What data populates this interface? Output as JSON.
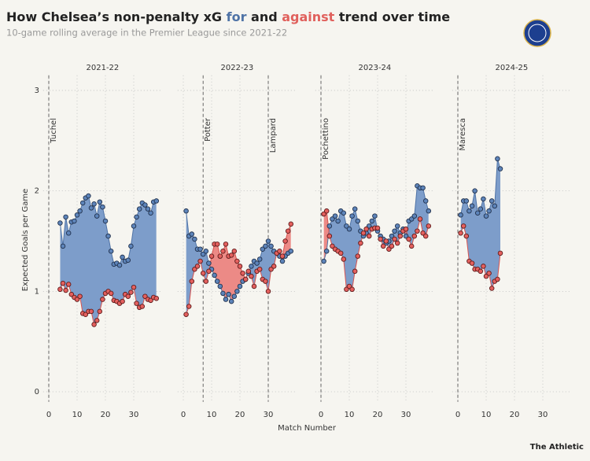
{
  "title": [
    "How Chelsea’s non-penalty xG ",
    "for",
    " and ",
    "against",
    " trend over time"
  ],
  "title_colors": [
    "#222222",
    "#4f73a6",
    "#222222",
    "#e0605c",
    "#222222"
  ],
  "subtitle": "10-game rolling average in the Premier League since 2021-22",
  "y_label": "Expected Goals per Game",
  "x_label": "Match Number",
  "source": "The Athletic",
  "chart_data": [
    {
      "type": "line",
      "title": "2021-22",
      "xlim": [
        -2,
        40
      ],
      "xticks": [
        0,
        10,
        20,
        30
      ],
      "ylim": [
        -0.1,
        3.15
      ],
      "yticks": [
        0,
        1,
        2,
        3
      ],
      "grid": true,
      "annotations": [
        {
          "label": "Tuchel",
          "x": 0
        }
      ],
      "x": [
        4,
        5,
        6,
        7,
        8,
        9,
        10,
        11,
        12,
        13,
        14,
        15,
        16,
        17,
        18,
        19,
        20,
        21,
        22,
        23,
        24,
        25,
        26,
        27,
        28,
        29,
        30,
        31,
        32,
        33,
        34,
        35,
        36,
        37,
        38
      ],
      "series": [
        {
          "color": "#5d84ba",
          "values": [
            1.68,
            1.45,
            1.74,
            1.58,
            1.69,
            1.7,
            1.76,
            1.8,
            1.88,
            1.93,
            1.95,
            1.83,
            1.87,
            1.75,
            1.89,
            1.84,
            1.7,
            1.55,
            1.4,
            1.27,
            1.28,
            1.26,
            1.34,
            1.3,
            1.31,
            1.45,
            1.65,
            1.74,
            1.82,
            1.88,
            1.86,
            1.82,
            1.78,
            1.89,
            1.9
          ]
        },
        {
          "color": "#e4605e",
          "values": [
            1.02,
            1.08,
            1.01,
            1.07,
            0.97,
            0.94,
            0.92,
            0.95,
            0.78,
            0.77,
            0.8,
            0.8,
            0.67,
            0.71,
            0.8,
            0.92,
            0.98,
            1.0,
            0.98,
            0.91,
            0.9,
            0.88,
            0.9,
            0.97,
            0.95,
            0.99,
            1.04,
            0.88,
            0.84,
            0.85,
            0.95,
            0.92,
            0.91,
            0.94,
            0.93
          ]
        }
      ]
    },
    {
      "type": "line",
      "title": "2022-23",
      "xlim": [
        -2,
        40
      ],
      "xticks": [
        0,
        10,
        20,
        30
      ],
      "ylim": [
        -0.1,
        3.15
      ],
      "yticks": [
        0,
        1,
        2,
        3
      ],
      "grid": true,
      "annotations": [
        {
          "label": "Potter",
          "x": 7
        },
        {
          "label": "Lampard",
          "x": 30
        }
      ],
      "x": [
        1,
        2,
        3,
        4,
        5,
        6,
        7,
        8,
        9,
        10,
        11,
        12,
        13,
        14,
        15,
        16,
        17,
        18,
        19,
        20,
        21,
        22,
        23,
        24,
        25,
        26,
        27,
        28,
        29,
        30,
        31,
        32,
        33,
        34,
        35,
        36,
        37,
        38
      ],
      "series": [
        {
          "color": "#5d84ba",
          "values": [
            1.8,
            1.55,
            1.57,
            1.52,
            1.42,
            1.42,
            1.37,
            1.4,
            1.28,
            1.22,
            1.16,
            1.1,
            1.05,
            0.98,
            0.92,
            0.97,
            0.9,
            0.95,
            1.0,
            1.05,
            1.1,
            1.12,
            1.18,
            1.25,
            1.3,
            1.28,
            1.32,
            1.42,
            1.45,
            1.5,
            1.45,
            1.4,
            1.38,
            1.35,
            1.3,
            1.35,
            1.38,
            1.4
          ]
        },
        {
          "color": "#e4605e",
          "values": [
            0.77,
            0.85,
            1.1,
            1.22,
            1.25,
            1.3,
            1.18,
            1.1,
            1.2,
            1.35,
            1.47,
            1.47,
            1.35,
            1.4,
            1.47,
            1.35,
            1.36,
            1.4,
            1.3,
            1.25,
            1.18,
            1.12,
            1.2,
            1.15,
            1.05,
            1.2,
            1.22,
            1.12,
            1.1,
            1.0,
            1.22,
            1.25,
            1.38,
            1.4,
            1.35,
            1.5,
            1.6,
            1.67
          ]
        }
      ]
    },
    {
      "type": "line",
      "title": "2023-24",
      "xlim": [
        -2,
        40
      ],
      "xticks": [
        0,
        10,
        20,
        30
      ],
      "ylim": [
        -0.1,
        3.15
      ],
      "yticks": [
        0,
        1,
        2,
        3
      ],
      "grid": true,
      "annotations": [
        {
          "label": "Pochettino",
          "x": 0
        }
      ],
      "x": [
        1,
        2,
        3,
        4,
        5,
        6,
        7,
        8,
        9,
        10,
        11,
        12,
        13,
        14,
        15,
        16,
        17,
        18,
        19,
        20,
        21,
        22,
        23,
        24,
        25,
        26,
        27,
        28,
        29,
        30,
        31,
        32,
        33,
        34,
        35,
        36,
        37,
        38
      ],
      "series": [
        {
          "color": "#5d84ba",
          "values": [
            1.3,
            1.4,
            1.65,
            1.72,
            1.75,
            1.7,
            1.8,
            1.78,
            1.65,
            1.62,
            1.75,
            1.82,
            1.7,
            1.6,
            1.55,
            1.58,
            1.65,
            1.7,
            1.75,
            1.6,
            1.55,
            1.52,
            1.48,
            1.5,
            1.55,
            1.6,
            1.65,
            1.58,
            1.62,
            1.55,
            1.7,
            1.72,
            1.75,
            2.05,
            2.03,
            2.03,
            1.9,
            1.8
          ]
        },
        {
          "color": "#e4605e",
          "values": [
            1.77,
            1.8,
            1.55,
            1.45,
            1.42,
            1.4,
            1.38,
            1.32,
            1.02,
            1.05,
            1.02,
            1.2,
            1.35,
            1.48,
            1.58,
            1.62,
            1.55,
            1.62,
            1.63,
            1.63,
            1.52,
            1.45,
            1.5,
            1.42,
            1.45,
            1.52,
            1.48,
            1.55,
            1.6,
            1.62,
            1.52,
            1.45,
            1.55,
            1.6,
            1.72,
            1.58,
            1.55,
            1.65
          ]
        }
      ]
    },
    {
      "type": "line",
      "title": "2024-25",
      "xlim": [
        -2,
        40
      ],
      "xticks": [
        0,
        10,
        20,
        30
      ],
      "ylim": [
        -0.1,
        3.15
      ],
      "yticks": [
        0,
        1,
        2,
        3
      ],
      "grid": true,
      "annotations": [
        {
          "label": "Maresca",
          "x": 0
        }
      ],
      "x": [
        1,
        2,
        3,
        4,
        5,
        6,
        7,
        8,
        9,
        10,
        11,
        12,
        13,
        14,
        15
      ],
      "series": [
        {
          "color": "#5d84ba",
          "values": [
            1.76,
            1.9,
            1.9,
            1.8,
            1.85,
            2.0,
            1.78,
            1.82,
            1.92,
            1.75,
            1.8,
            1.9,
            1.85,
            2.32,
            2.22
          ]
        },
        {
          "color": "#e4605e",
          "values": [
            1.58,
            1.65,
            1.55,
            1.3,
            1.28,
            1.22,
            1.22,
            1.2,
            1.25,
            1.15,
            1.18,
            1.03,
            1.1,
            1.12,
            1.38
          ]
        }
      ]
    }
  ]
}
